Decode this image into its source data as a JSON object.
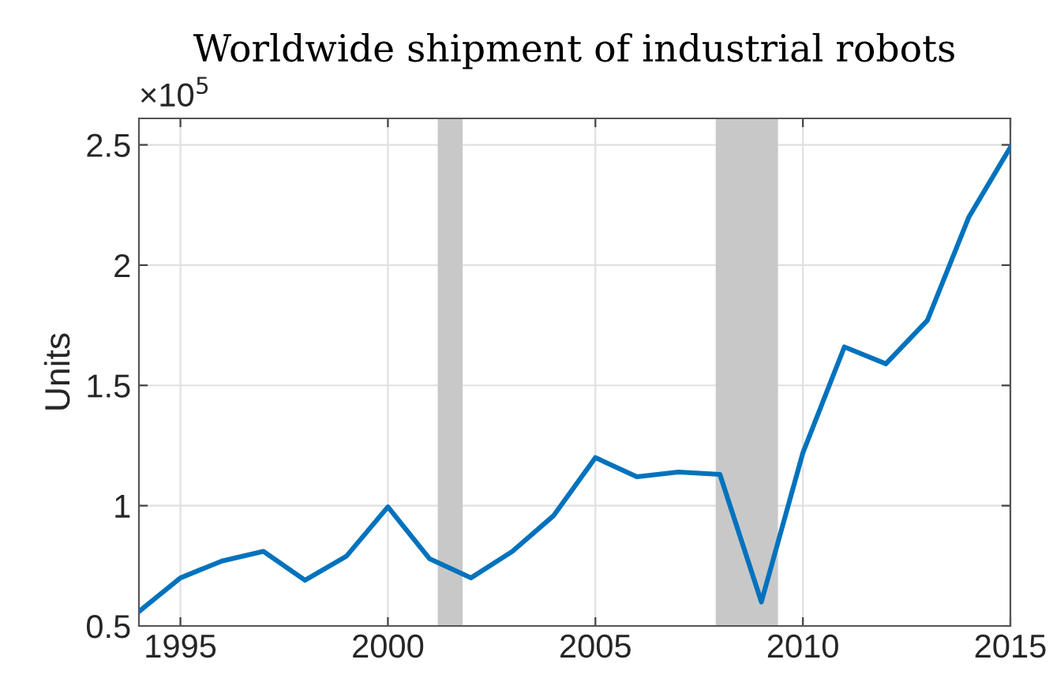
{
  "chart_data": {
    "type": "line",
    "title": "Worldwide shipment of industrial robots",
    "ylabel": "Units",
    "annotations": [
      "×10$^{5}$"
    ],
    "x": [
      1994,
      1995,
      1996,
      1997,
      1998,
      1999,
      2000,
      2001,
      2002,
      2003,
      2004,
      2005,
      2006,
      2007,
      2008,
      2009,
      2010,
      2011,
      2012,
      2013,
      2014,
      2015
    ],
    "series": [
      {
        "color": "#0072bd",
        "values": [
          0.56,
          0.7,
          0.77,
          0.81,
          0.69,
          0.79,
          0.995,
          0.78,
          0.7,
          0.81,
          0.96,
          1.2,
          1.12,
          1.14,
          1.13,
          0.6,
          1.22,
          1.66,
          1.59,
          1.77,
          2.2,
          2.49
        ]
      }
    ],
    "xlim": [
      1994,
      2015
    ],
    "xticks": [
      1995,
      2000,
      2005,
      2010,
      2015
    ],
    "ylim": [
      0.5,
      2.61
    ],
    "yticks": [
      0.5,
      1,
      1.5,
      2,
      2.5
    ],
    "bands": [
      {
        "axis": "x",
        "from": 2001.2,
        "to": 2001.8,
        "color": "#c8c8c8"
      },
      {
        "axis": "x",
        "from": 2007.9,
        "to": 2009.4,
        "color": "#c8c8c8"
      }
    ],
    "grid": true,
    "marker": "none",
    "line_style": "solid"
  }
}
